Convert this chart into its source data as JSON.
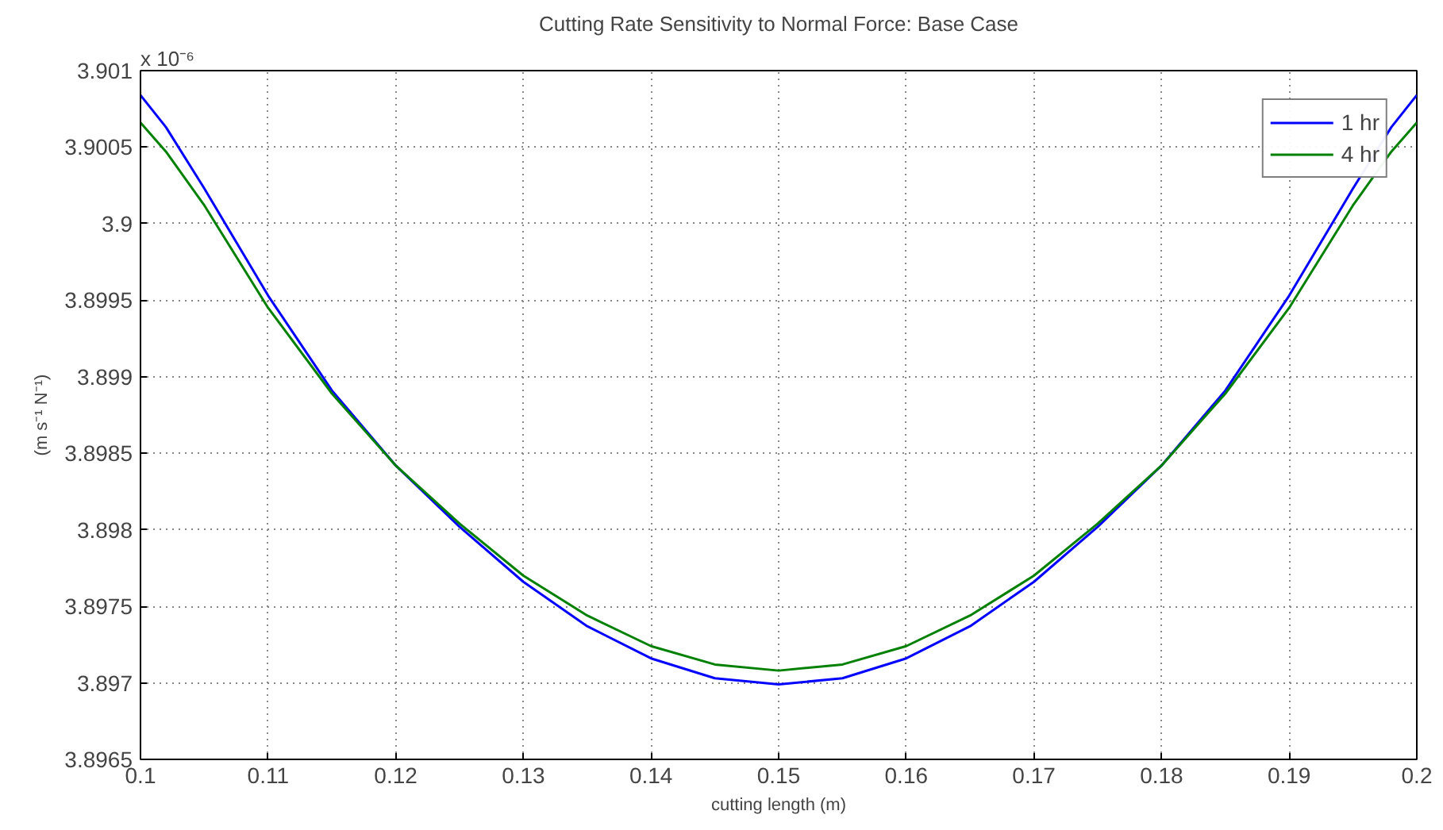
{
  "chart_data": {
    "type": "line",
    "title": "Cutting Rate Sensitivity to Normal Force: Base Case",
    "xlabel": "cutting length (m)",
    "ylabel": "(m s⁻¹ N⁻¹)",
    "annotations": [
      "x 10⁻⁶"
    ],
    "x": [
      0.1,
      0.102,
      0.105,
      0.11,
      0.115,
      0.12,
      0.125,
      0.13,
      0.135,
      0.14,
      0.145,
      0.15,
      0.155,
      0.16,
      0.165,
      0.17,
      0.175,
      0.18,
      0.185,
      0.19,
      0.195,
      0.198,
      0.2
    ],
    "series": [
      {
        "name": "1 hr",
        "color": "#0000ff",
        "values": [
          3.90084,
          3.90063,
          3.90023,
          3.89953,
          3.89891,
          3.89842,
          3.89802,
          3.89766,
          3.89737,
          3.89716,
          3.89703,
          3.89699,
          3.89703,
          3.89716,
          3.89737,
          3.89766,
          3.89802,
          3.89842,
          3.89891,
          3.89953,
          3.90023,
          3.90063,
          3.90084
        ]
      },
      {
        "name": "4 hr",
        "color": "#008000",
        "values": [
          3.90066,
          3.90047,
          3.90012,
          3.89945,
          3.89889,
          3.89842,
          3.89804,
          3.8977,
          3.89744,
          3.89724,
          3.89712,
          3.89708,
          3.89712,
          3.89724,
          3.89744,
          3.8977,
          3.89804,
          3.89842,
          3.89889,
          3.89945,
          3.90012,
          3.90047,
          3.90066
        ]
      }
    ],
    "xlim": [
      0.1,
      0.2
    ],
    "ylim": [
      3.8965,
      3.901
    ],
    "xticks": [
      0.1,
      0.11,
      0.12,
      0.13,
      0.14,
      0.15,
      0.16,
      0.17,
      0.18,
      0.19,
      0.2
    ],
    "yticks": [
      3.8965,
      3.897,
      3.8975,
      3.898,
      3.8985,
      3.899,
      3.8995,
      3.9,
      3.9005,
      3.901
    ],
    "grid": true,
    "legend": "top right",
    "marker": "none",
    "line_style": "solid"
  }
}
